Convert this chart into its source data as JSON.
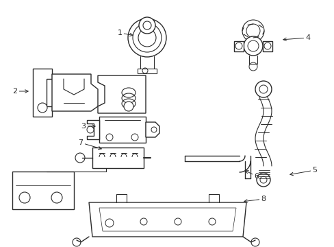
{
  "bg_color": "#ffffff",
  "line_color": "#2a2a2a",
  "lw": 1.0,
  "fig_w": 4.89,
  "fig_h": 3.6,
  "dpi": 100
}
